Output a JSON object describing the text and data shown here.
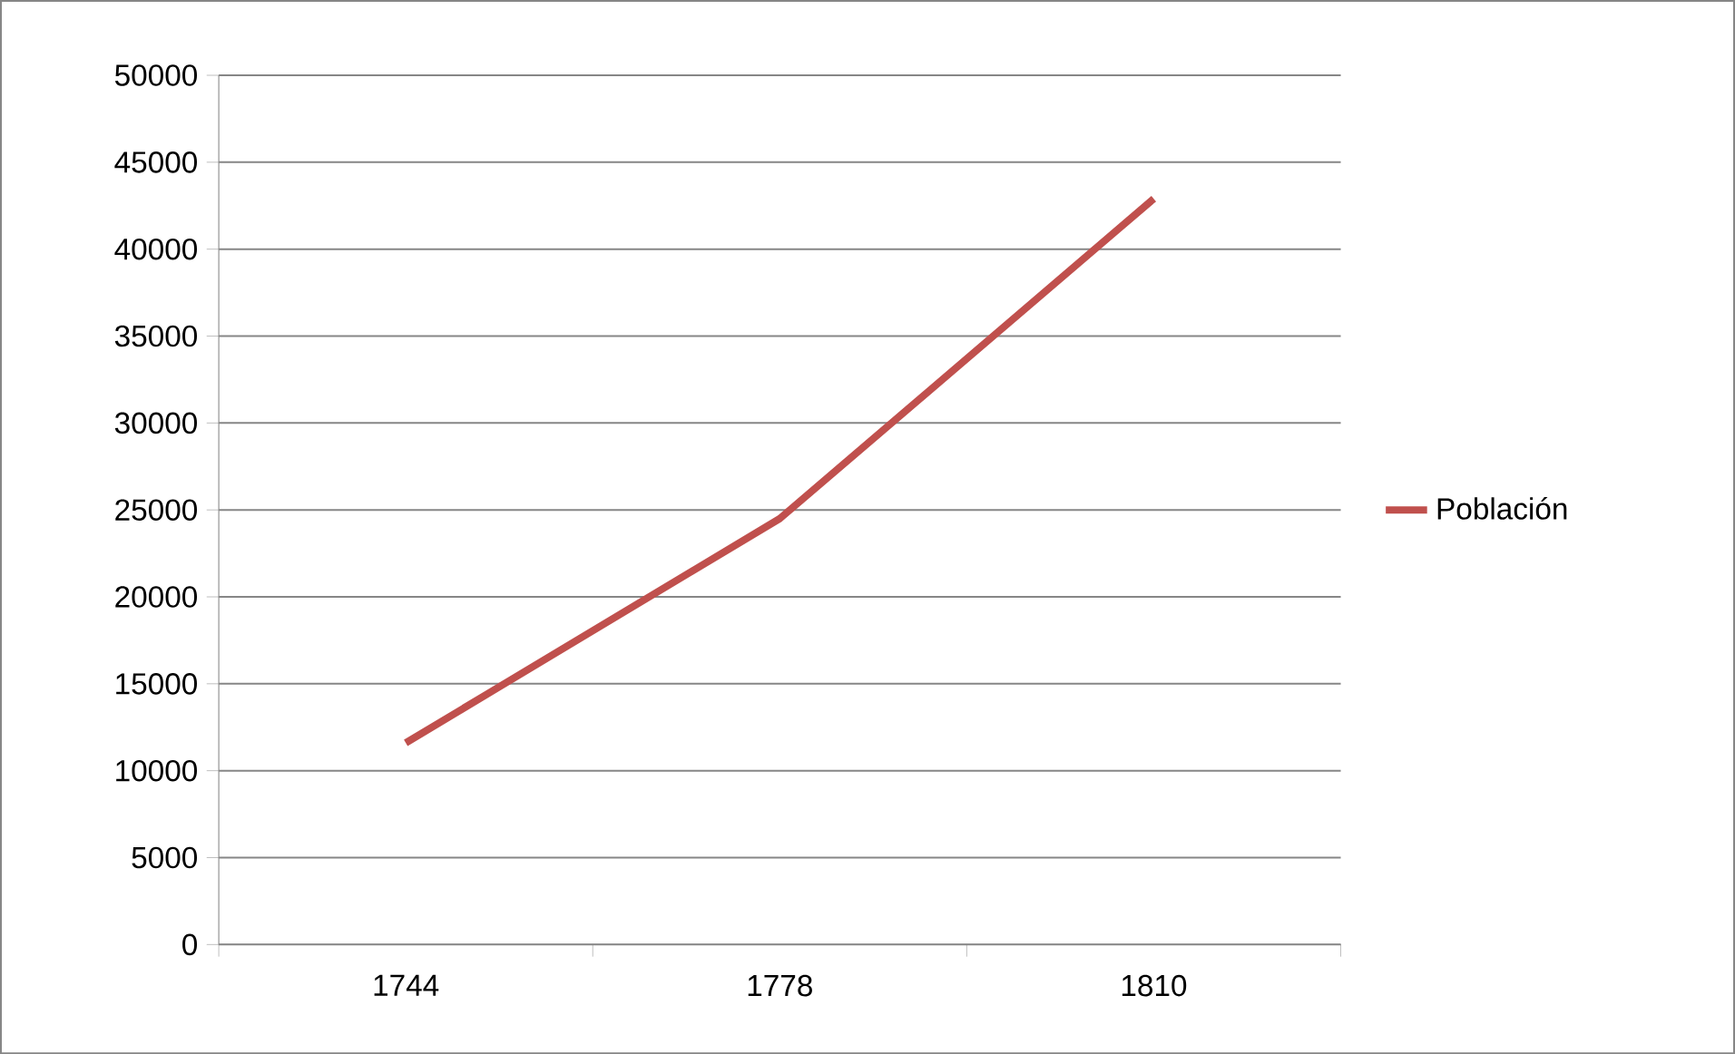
{
  "chart_data": {
    "type": "line",
    "categories": [
      "1744",
      "1778",
      "1810"
    ],
    "series": [
      {
        "name": "Población",
        "color": "#c0504d",
        "values": [
          11600,
          24500,
          42900
        ]
      }
    ],
    "ylim": [
      0,
      50000
    ],
    "yticks": [
      0,
      5000,
      10000,
      15000,
      20000,
      25000,
      30000,
      35000,
      40000,
      45000,
      50000
    ],
    "grid": "y",
    "legend": "right",
    "marker": "none",
    "line_style": "solid"
  }
}
